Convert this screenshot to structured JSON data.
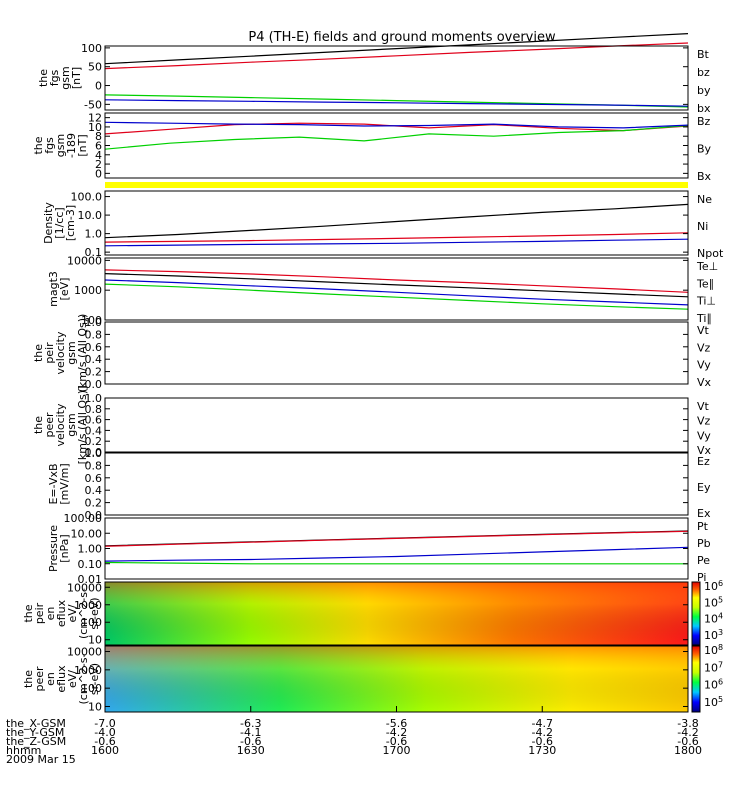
{
  "title": "P4 (TH-E) fields and ground moments overview",
  "colors": {
    "black": "#000000",
    "red": "#e0001a",
    "green": "#00d000",
    "blue": "#0000cc",
    "yellow": "#ffff00"
  },
  "footer": {
    "rows": [
      {
        "label": "the_X-GSM",
        "values": [
          "-7.0",
          "-6.3",
          "-5.6",
          "-4.7",
          "-3.8"
        ]
      },
      {
        "label": "the_Y-GSM",
        "values": [
          "-4.0",
          "-4.1",
          "-4.2",
          "-4.2",
          "-4.2"
        ]
      },
      {
        "label": "the_Z-GSM",
        "values": [
          "-0.6",
          "-0.6",
          "-0.6",
          "-0.6",
          "-0.6"
        ]
      },
      {
        "label": "hhmm",
        "values": [
          "1600",
          "1630",
          "1700",
          "1730",
          "1800"
        ]
      }
    ],
    "date": "2009 Mar 15"
  },
  "chart_data": [
    {
      "id": "fgs",
      "type": "line",
      "ylabel": [
        "the",
        "fgs",
        "gsm",
        "[nT]"
      ],
      "yticks": [
        "100",
        "50",
        "0",
        "-50"
      ],
      "ylim": [
        -65,
        105
      ],
      "series": [
        {
          "name": "Bt",
          "color": "black",
          "values": [
            58,
            68,
            78,
            88,
            98,
            108,
            118,
            128,
            138
          ]
        },
        {
          "name": "bz",
          "color": "red",
          "values": [
            45,
            53,
            62,
            70,
            79,
            88,
            96,
            105,
            113
          ]
        },
        {
          "name": "by",
          "color": "green",
          "values": [
            -25,
            -28,
            -32,
            -36,
            -40,
            -44,
            -48,
            -52,
            -57
          ]
        },
        {
          "name": "bx",
          "color": "blue",
          "values": [
            -38,
            -40,
            -42,
            -44,
            -46,
            -48,
            -50,
            -52,
            -55
          ]
        }
      ]
    },
    {
      "id": "fgs189",
      "type": "line",
      "ylabel": [
        "the",
        "fgs",
        "gsm",
        "-189",
        "[nT]"
      ],
      "yticks": [
        "12",
        "10",
        "8",
        "6",
        "4",
        "2",
        "0"
      ],
      "ylim": [
        -1,
        13
      ],
      "series": [
        {
          "name": "Bz",
          "color": "red",
          "values": [
            8.5,
            9.5,
            10.5,
            10.8,
            10.6,
            9.8,
            10.5,
            9.7,
            9.2,
            10.2
          ]
        },
        {
          "name": "By",
          "color": "green",
          "values": [
            5.2,
            6.5,
            7.3,
            7.8,
            7.0,
            8.5,
            8.0,
            8.8,
            9.2,
            10.3
          ]
        },
        {
          "name": "Bx",
          "color": "blue",
          "values": [
            11.0,
            10.8,
            10.6,
            10.5,
            10.2,
            10.3,
            10.6,
            10.0,
            9.8,
            10.4
          ]
        }
      ]
    },
    {
      "id": "density",
      "type": "line",
      "log": true,
      "ylabel": [
        "Density",
        "[1/cc]",
        "[cm-3]"
      ],
      "yticks": [
        "100.0",
        "10.0",
        "1.0",
        "0.1"
      ],
      "ylim": [
        0.07,
        200
      ],
      "series": [
        {
          "name": "Ne",
          "color": "red",
          "values": [
            0.35,
            0.38,
            0.42,
            0.48,
            0.55,
            0.65,
            0.75,
            0.9,
            1.1
          ]
        },
        {
          "name": "Ni",
          "color": "black",
          "values": [
            0.6,
            0.9,
            1.5,
            2.5,
            4.5,
            8,
            14,
            22,
            38
          ]
        },
        {
          "name": "Npot",
          "color": "blue",
          "values": [
            0.22,
            0.24,
            0.26,
            0.28,
            0.3,
            0.34,
            0.38,
            0.44,
            0.5
          ]
        }
      ]
    },
    {
      "id": "temp",
      "type": "line",
      "log": true,
      "ylabel": [
        "magt3",
        "[eV]"
      ],
      "yticks": [
        "10000",
        "1000",
        "100"
      ],
      "ylim": [
        100,
        12000
      ],
      "series": [
        {
          "name": "Te⊥",
          "color": "red",
          "values": [
            4800,
            4200,
            3500,
            2800,
            2200,
            1800,
            1400,
            1100,
            850
          ]
        },
        {
          "name": "Te∥",
          "color": "black",
          "values": [
            3600,
            3000,
            2400,
            1900,
            1500,
            1200,
            950,
            750,
            600
          ]
        },
        {
          "name": "Ti⊥",
          "color": "blue",
          "values": [
            2200,
            1800,
            1400,
            1100,
            850,
            650,
            500,
            400,
            320
          ]
        },
        {
          "name": "Ti∥",
          "color": "green",
          "values": [
            1600,
            1300,
            1000,
            750,
            580,
            450,
            350,
            280,
            230
          ]
        }
      ]
    },
    {
      "id": "peirvel",
      "type": "line",
      "ylabel": [
        "the",
        "peir",
        "velocity",
        "gsm",
        "(km/s (All Qs))"
      ],
      "yticks": [
        "1.0",
        "0.8",
        "0.6",
        "0.4",
        "0.2",
        "0.0"
      ],
      "ylim": [
        0,
        1
      ],
      "series": [
        {
          "name": "Vt",
          "color": "black",
          "values": []
        },
        {
          "name": "Vz",
          "color": "red",
          "values": []
        },
        {
          "name": "Vy",
          "color": "green",
          "values": []
        },
        {
          "name": "Vx",
          "color": "blue",
          "values": []
        }
      ]
    },
    {
      "id": "peervel",
      "type": "line",
      "ylabel": [
        "the",
        "peer",
        "velocity",
        "gsm",
        "[km/s (All Qs)]"
      ],
      "yticks": [
        "1.0",
        "0.8",
        "0.6",
        "0.4",
        "0.2",
        "0.0"
      ],
      "ylim": [
        0,
        1
      ],
      "series": [
        {
          "name": "Vt",
          "color": "black",
          "values": []
        },
        {
          "name": "Vz",
          "color": "red",
          "values": []
        },
        {
          "name": "Vy",
          "color": "green",
          "values": []
        },
        {
          "name": "Vx",
          "color": "blue",
          "values": []
        }
      ]
    },
    {
      "id": "efield",
      "type": "line",
      "ylabel": [
        "E=-VxB",
        "[mV/m]"
      ],
      "yticks": [
        "1.0",
        "0.8",
        "0.6",
        "0.4",
        "0.2",
        "0.0"
      ],
      "ylim": [
        0,
        1
      ],
      "series": [
        {
          "name": "Ez",
          "color": "red",
          "values": []
        },
        {
          "name": "Ey",
          "color": "green",
          "values": []
        },
        {
          "name": "Ex",
          "color": "blue",
          "values": []
        }
      ]
    },
    {
      "id": "pressure",
      "type": "line",
      "log": true,
      "ylabel": [
        "Pressure",
        "[nPa]"
      ],
      "yticks": [
        "100.00",
        "10.00",
        "1.00",
        "0.10",
        "0.01"
      ],
      "ylim": [
        0.01,
        100
      ],
      "series": [
        {
          "name": "Pt",
          "color": "black",
          "values": [
            1.5,
            2.0,
            2.7,
            3.6,
            4.8,
            6.4,
            8.4,
            11,
            14
          ]
        },
        {
          "name": "Pb",
          "color": "red",
          "values": [
            1.4,
            1.9,
            2.6,
            3.5,
            4.6,
            6.1,
            8.0,
            10.5,
            13.5
          ]
        },
        {
          "name": "Pe",
          "color": "green",
          "values": [
            0.12,
            0.11,
            0.1,
            0.1,
            0.1,
            0.1,
            0.1,
            0.1,
            0.1
          ]
        },
        {
          "name": "Pi",
          "color": "blue",
          "values": [
            0.15,
            0.17,
            0.19,
            0.24,
            0.3,
            0.42,
            0.6,
            0.85,
            1.2
          ]
        }
      ]
    },
    {
      "id": "peir_eflux",
      "type": "heatmap",
      "ylabel": [
        "the",
        "peir",
        "en",
        "eflux",
        "eV/",
        "(cm^2-s-",
        "sr-eV)"
      ],
      "yticks": [
        "10000",
        "1000",
        "100",
        "10"
      ],
      "ylim": [
        5,
        20000
      ],
      "colorbar": [
        "10^6",
        "10^5",
        "10^4",
        "10^3"
      ]
    },
    {
      "id": "peer_eflux",
      "type": "heatmap",
      "ylabel": [
        "the",
        "peer",
        "en",
        "eflux",
        "eV/",
        "(cm^2-s-",
        "sr-eV)"
      ],
      "yticks": [
        "10000",
        "1000",
        "100",
        "10"
      ],
      "ylim": [
        5,
        20000
      ],
      "colorbar": [
        "10^8",
        "10^7",
        "10^6",
        "10^5"
      ]
    }
  ]
}
